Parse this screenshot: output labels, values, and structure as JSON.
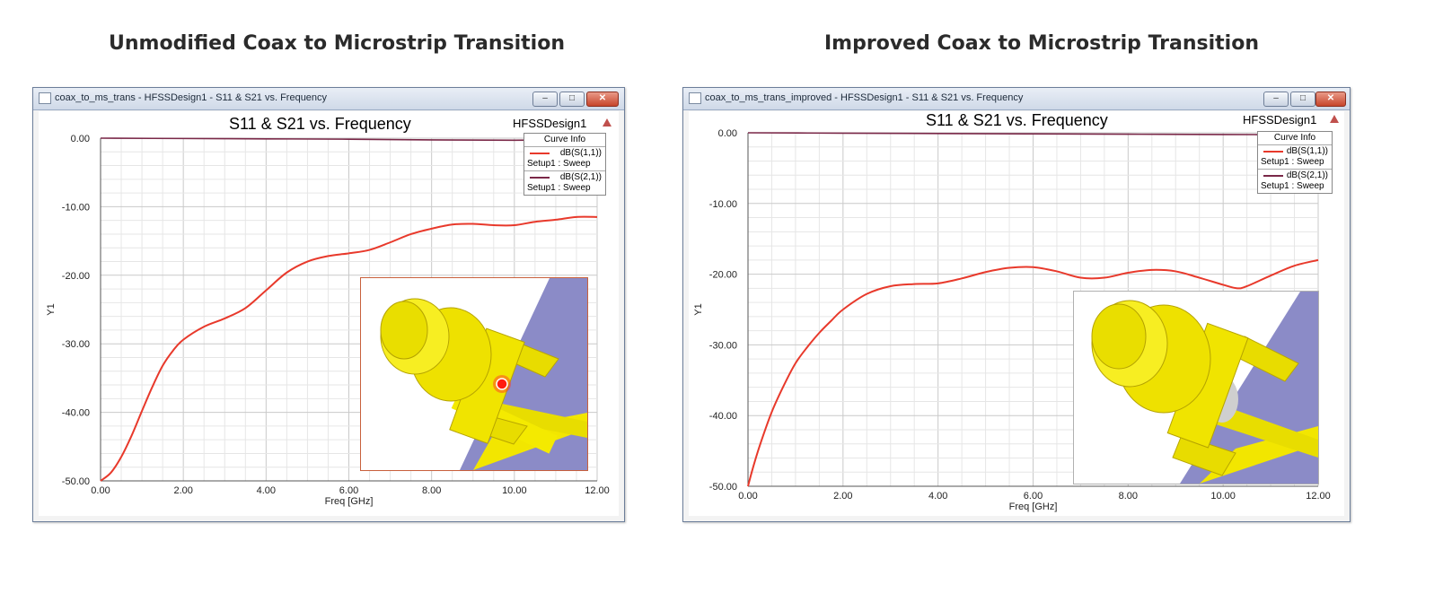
{
  "headings": {
    "left": "Unmodified Coax to Microstrip Transition",
    "right": "Improved Coax to Microstrip Transition"
  },
  "windows": [
    {
      "window_title": "coax_to_ms_trans - HFSSDesign1 - S11 & S21 vs. Frequency",
      "plot_title": "S11 & S21 vs. Frequency",
      "design_name": "HFSSDesign1",
      "legend": {
        "header": "Curve Info",
        "entries": [
          {
            "name": "dB(S(1,1))",
            "setup": "Setup1 : Sweep",
            "color": "#e8392b"
          },
          {
            "name": "dB(S(2,1))",
            "setup": "Setup1 : Sweep",
            "color": "#7a2848"
          }
        ]
      }
    },
    {
      "window_title": "coax_to_ms_trans_improved - HFSSDesign1 - S11 & S21 vs. Frequency",
      "plot_title": "S11 & S21 vs. Frequency",
      "design_name": "HFSSDesign1",
      "legend": {
        "header": "Curve Info",
        "entries": [
          {
            "name": "dB(S(1,1))",
            "setup": "Setup1 : Sweep",
            "color": "#e8392b"
          },
          {
            "name": "dB(S(2,1))",
            "setup": "Setup1 : Sweep",
            "color": "#7a2848"
          }
        ]
      }
    }
  ],
  "chart_data": [
    {
      "type": "line",
      "title": "S11 & S21 vs. Frequency",
      "xlabel": "Freq [GHz]",
      "ylabel": "Y1",
      "xlim": [
        0,
        12
      ],
      "ylim": [
        -50,
        0
      ],
      "x_ticks": [
        "0.00",
        "2.00",
        "4.00",
        "6.00",
        "8.00",
        "10.00",
        "12.00"
      ],
      "y_ticks": [
        "0.00",
        "-10.00",
        "-20.00",
        "-30.00",
        "-40.00",
        "-50.00"
      ],
      "grid": true,
      "series": [
        {
          "name": "dB(S(1,1))",
          "color": "#e8392b",
          "x": [
            0,
            0.25,
            0.5,
            0.75,
            1.0,
            1.25,
            1.5,
            1.75,
            2.0,
            2.5,
            3.0,
            3.5,
            4.0,
            4.5,
            5.0,
            5.5,
            6.0,
            6.5,
            7.0,
            7.5,
            8.0,
            8.5,
            9.0,
            9.5,
            10.0,
            10.5,
            11.0,
            11.5,
            12.0
          ],
          "y": [
            -50,
            -48.8,
            -46.5,
            -43.4,
            -39.8,
            -36.3,
            -33.2,
            -31.0,
            -29.4,
            -27.5,
            -26.3,
            -24.8,
            -22.2,
            -19.6,
            -18.0,
            -17.2,
            -16.8,
            -16.3,
            -15.2,
            -14.0,
            -13.2,
            -12.6,
            -12.5,
            -12.7,
            -12.7,
            -12.2,
            -11.9,
            -11.5,
            -11.5
          ]
        },
        {
          "name": "dB(S(2,1))",
          "color": "#7a2848",
          "x": [
            0,
            2,
            4,
            6,
            8,
            10,
            11,
            12
          ],
          "y": [
            0,
            -0.05,
            -0.1,
            -0.15,
            -0.25,
            -0.3,
            -0.25,
            -0.2
          ]
        }
      ]
    },
    {
      "type": "line",
      "title": "S11 & S21 vs. Frequency",
      "xlabel": "Freq [GHz]",
      "ylabel": "Y1",
      "xlim": [
        0,
        12
      ],
      "ylim": [
        -50,
        0
      ],
      "x_ticks": [
        "0.00",
        "2.00",
        "4.00",
        "6.00",
        "8.00",
        "10.00",
        "12.00"
      ],
      "y_ticks": [
        "0.00",
        "-10.00",
        "-20.00",
        "-30.00",
        "-40.00",
        "-50.00"
      ],
      "grid": true,
      "series": [
        {
          "name": "dB(S(1,1))",
          "color": "#e8392b",
          "x": [
            0,
            0.1,
            0.25,
            0.5,
            0.75,
            1.0,
            1.25,
            1.5,
            1.75,
            2.0,
            2.5,
            3.0,
            3.5,
            4.0,
            4.5,
            5.0,
            5.5,
            6.0,
            6.5,
            7.0,
            7.5,
            8.0,
            8.5,
            9.0,
            9.5,
            10.0,
            10.3,
            10.5,
            11.0,
            11.5,
            12.0
          ],
          "y": [
            -50,
            -47.5,
            -44.2,
            -39.5,
            -35.8,
            -32.6,
            -30.3,
            -28.3,
            -26.6,
            -25.0,
            -22.8,
            -21.7,
            -21.4,
            -21.3,
            -20.6,
            -19.7,
            -19.1,
            -19.0,
            -19.6,
            -20.5,
            -20.5,
            -19.8,
            -19.4,
            -19.6,
            -20.5,
            -21.5,
            -22.0,
            -21.7,
            -20.2,
            -18.8,
            -18.0
          ]
        },
        {
          "name": "dB(S(2,1))",
          "color": "#7a2848",
          "x": [
            0,
            2,
            4,
            6,
            8,
            10,
            11,
            12
          ],
          "y": [
            0,
            -0.05,
            -0.1,
            -0.15,
            -0.2,
            -0.25,
            -0.25,
            -0.2
          ]
        }
      ]
    }
  ]
}
